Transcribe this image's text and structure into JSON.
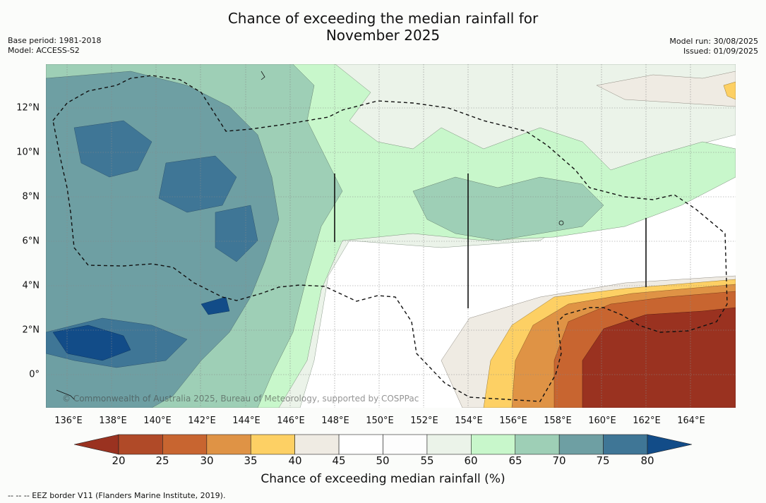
{
  "title_line1": "Chance of exceeding the median rainfall for",
  "title_line2": "November 2025",
  "meta_left": [
    "Base period: 1981-2018",
    "Model: ACCESS-S2"
  ],
  "meta_right": [
    "Model run: 30/08/2025",
    "Issued: 01/09/2025"
  ],
  "map": {
    "lon_range": [
      135,
      166
    ],
    "lat_range": [
      -1.5,
      14
    ],
    "x_ticks": [
      "136°E",
      "138°E",
      "140°E",
      "142°E",
      "144°E",
      "146°E",
      "148°E",
      "150°E",
      "152°E",
      "154°E",
      "156°E",
      "158°E",
      "160°E",
      "162°E",
      "164°E"
    ],
    "y_ticks": [
      "12°N",
      "10°N",
      "8°N",
      "6°N",
      "4°N",
      "2°N",
      "0°"
    ],
    "credit": "© Commonwealth of Australia 2025, Bureau of Meteorology, supported by COSPPac"
  },
  "colorbar": {
    "labels": [
      "20",
      "25",
      "30",
      "35",
      "40",
      "45",
      "50",
      "55",
      "60",
      "65",
      "70",
      "75",
      "80"
    ],
    "colors": [
      "#9a3220",
      "#b04a28",
      "#c86530",
      "#df9345",
      "#fdd064",
      "#efebe3",
      "#ffffff",
      "#fdfdfd",
      "#ebf3e9",
      "#c8f7cb",
      "#9ecfb6",
      "#6e9fa3",
      "#3f7696",
      "#124c88"
    ],
    "title": "Chance of exceeding median rainfall (%)"
  },
  "footnote": "--  --  -- EEZ border V11 (Flanders Marine Institute, 2019)."
}
